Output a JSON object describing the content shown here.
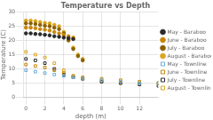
{
  "chart_data": {
    "type": "scatter",
    "title": "Temperature vs Depth",
    "xlabel": "depth (m)",
    "ylabel": "Temperature (C)",
    "xlim": [
      -0.3,
      14
    ],
    "ylim": [
      0,
      30
    ],
    "xticks": [
      0,
      2,
      4,
      6,
      8,
      10,
      12
    ],
    "yticks": [
      0,
      5,
      10,
      15,
      20,
      25,
      30
    ],
    "grid": true,
    "legend": "right",
    "series": [
      {
        "name": "May - Baraboo",
        "color": "#2a2a2a",
        "marker": "dot",
        "x": [
          0,
          0.5,
          1,
          1.5,
          2,
          2.5,
          3,
          3.5,
          4,
          4.5,
          5
        ],
        "values": [
          22.5,
          22.5,
          22.3,
          22.2,
          22.0,
          21.8,
          21.5,
          21.3,
          21.0,
          20.8,
          20.5
        ]
      },
      {
        "name": "June - Baraboo",
        "color": "#C8860A",
        "marker": "dot",
        "x": [
          0,
          0.5,
          1,
          1.5,
          2,
          2.5,
          3,
          3.5,
          4,
          4.5,
          5
        ],
        "values": [
          24.5,
          24.5,
          24.3,
          24.0,
          23.8,
          23.5,
          23.0,
          22.5,
          22.0,
          21.5,
          21.0
        ]
      },
      {
        "name": "July - Baraboo",
        "color": "#8B6000",
        "marker": "dot",
        "x": [
          0,
          0.5,
          1,
          1.5,
          2,
          2.5,
          3,
          3.5,
          4,
          4.5,
          5,
          5.5,
          6
        ],
        "values": [
          26.0,
          26.0,
          25.8,
          25.5,
          25.2,
          25.0,
          24.5,
          24.0,
          22.5,
          20.0,
          17.0,
          14.5,
          13.0
        ]
      },
      {
        "name": "August - Baraboo",
        "color": "#DAA520",
        "marker": "dot",
        "x": [
          0,
          0.5,
          1,
          1.5,
          2,
          2.5,
          3,
          3.5,
          4,
          4.5,
          5,
          5.5,
          6
        ],
        "values": [
          27.0,
          27.0,
          26.8,
          26.5,
          26.2,
          26.0,
          25.5,
          25.0,
          23.0,
          20.5,
          17.5,
          15.0,
          13.5
        ]
      },
      {
        "name": "May - Townline",
        "color": "#6baed6",
        "marker": "open_square",
        "x": [
          0,
          1,
          2,
          3,
          4,
          5,
          6,
          8,
          10,
          12,
          14
        ],
        "values": [
          9.5,
          9.0,
          8.5,
          8.0,
          7.5,
          7.0,
          6.5,
          6.0,
          5.5,
          5.0,
          5.0
        ]
      },
      {
        "name": "June - Townline",
        "color": "#C8860A",
        "marker": "open_square",
        "x": [
          0,
          1,
          2,
          3,
          4,
          5,
          6,
          8,
          10,
          12,
          14
        ],
        "values": [
          11.5,
          11.0,
          10.5,
          9.5,
          8.5,
          7.5,
          7.0,
          6.5,
          6.0,
          5.5,
          5.0
        ]
      },
      {
        "name": "July - Townline",
        "color": "#2a2a2a",
        "marker": "open_square",
        "x": [
          0,
          1,
          2,
          3,
          4,
          5,
          6,
          8,
          10,
          12,
          14
        ],
        "values": [
          13.5,
          13.0,
          12.0,
          10.0,
          8.0,
          7.0,
          6.5,
          5.5,
          5.0,
          4.5,
          4.0
        ]
      },
      {
        "name": "August - Townline",
        "color": "#DAA520",
        "marker": "open_square",
        "x": [
          0,
          1,
          2,
          3,
          4,
          5,
          6,
          8,
          10,
          12,
          14
        ],
        "values": [
          16.0,
          15.0,
          14.0,
          12.0,
          9.5,
          7.5,
          6.5,
          5.5,
          5.0,
          5.0,
          5.0
        ]
      }
    ]
  }
}
